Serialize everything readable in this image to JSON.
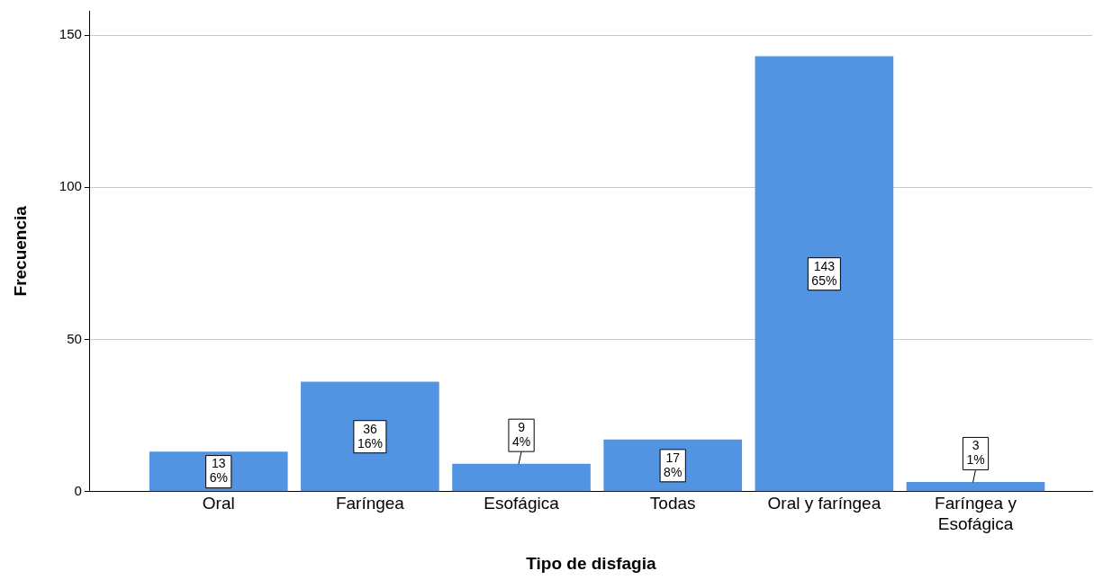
{
  "chart_data": {
    "type": "bar",
    "xlabel": "Tipo de disfagia",
    "ylabel": "Frecuencia",
    "categories": [
      "Oral",
      "Faríngea",
      "Esofágica",
      "Todas",
      "Oral y faríngea",
      "Faríngea y\nEsofágica"
    ],
    "values": [
      13,
      36,
      9,
      17,
      143,
      3
    ],
    "value_labels": [
      "13\n6%",
      "36\n16%",
      "9\n4%",
      "17\n8%",
      "143\n65%",
      "3\n1%"
    ],
    "color": "#5294e2",
    "ylim": [
      0,
      158
    ],
    "yticks": [
      0,
      50,
      100,
      150
    ],
    "grid": "y",
    "legend": false
  }
}
